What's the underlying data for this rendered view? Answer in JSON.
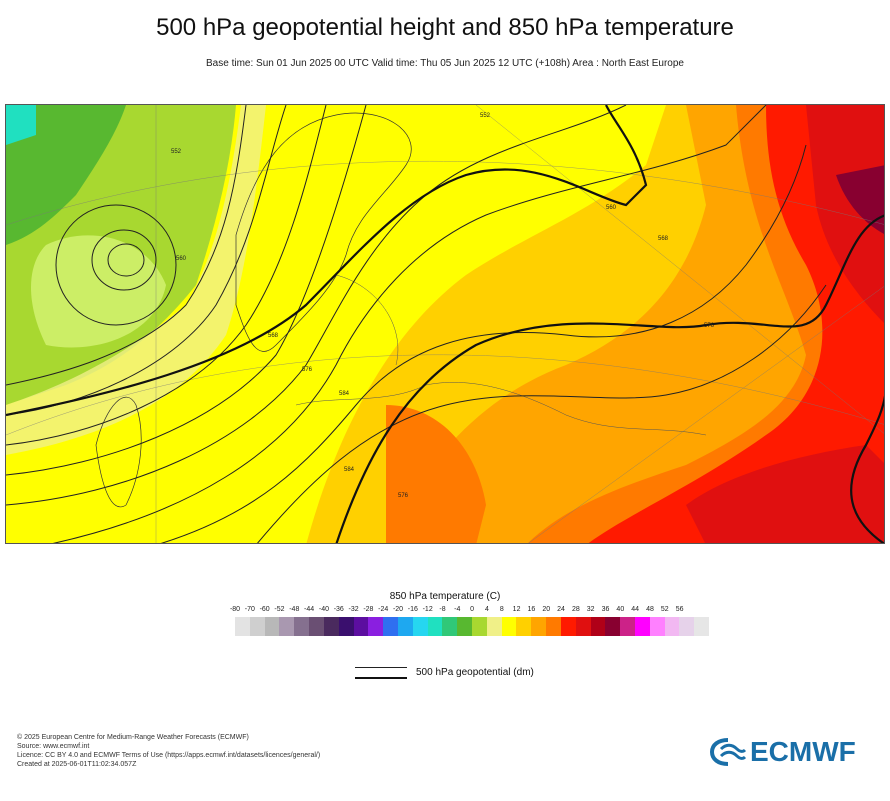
{
  "header": {
    "title": "500 hPa geopotential height and 850 hPa temperature",
    "subtitle": "Base time: Sun 01 Jun 2025 00 UTC Valid time: Thu 05 Jun 2025 12 UTC (+108h) Area : North East Europe"
  },
  "legend": {
    "temperature_title": "850 hPa temperature (C)",
    "ticks": [
      "-80",
      "-70",
      "-60",
      "-52",
      "-48",
      "-44",
      "-40",
      "-36",
      "-32",
      "-28",
      "-24",
      "-20",
      "-16",
      "-12",
      "-8",
      "-4",
      "0",
      "4",
      "8",
      "12",
      "16",
      "20",
      "24",
      "28",
      "32",
      "36",
      "40",
      "44",
      "48",
      "52",
      "56"
    ],
    "colors": [
      "#e3e3e3",
      "#cfcfcf",
      "#b8b8b8",
      "#a998b0",
      "#85708f",
      "#6a4f73",
      "#4a2a5e",
      "#3a0f6e",
      "#5c0ea0",
      "#8a1fe0",
      "#2f6ff0",
      "#1ea8f0",
      "#26d6f0",
      "#20e0c0",
      "#30c878",
      "#58b830",
      "#a8d830",
      "#f0f088",
      "#ffff00",
      "#ffd000",
      "#ffa500",
      "#ff7a00",
      "#ff1a00",
      "#e01010",
      "#b00018",
      "#880030",
      "#cc2288",
      "#ff00ff",
      "#ff80ff",
      "#f2b8f2",
      "#e6d2ea",
      "#e6e6e6"
    ],
    "geopotential_label": "500 hPa geopotential (dm)"
  },
  "map": {
    "contour_labels": [
      "552",
      "560",
      "568",
      "576",
      "584",
      "552",
      "560",
      "568",
      "576",
      "584",
      "576"
    ]
  },
  "footer": {
    "lines": [
      "© 2025 European Centre for Medium-Range Weather Forecasts (ECMWF)",
      "Source: www.ecmwf.int",
      "Licence: CC BY 4.0 and ECMWF Terms of Use (https://apps.ecmwf.int/datasets/licences/general/)",
      "Created at 2025-06-01T11:02:34.057Z"
    ],
    "logo_text": "ECMWF"
  }
}
